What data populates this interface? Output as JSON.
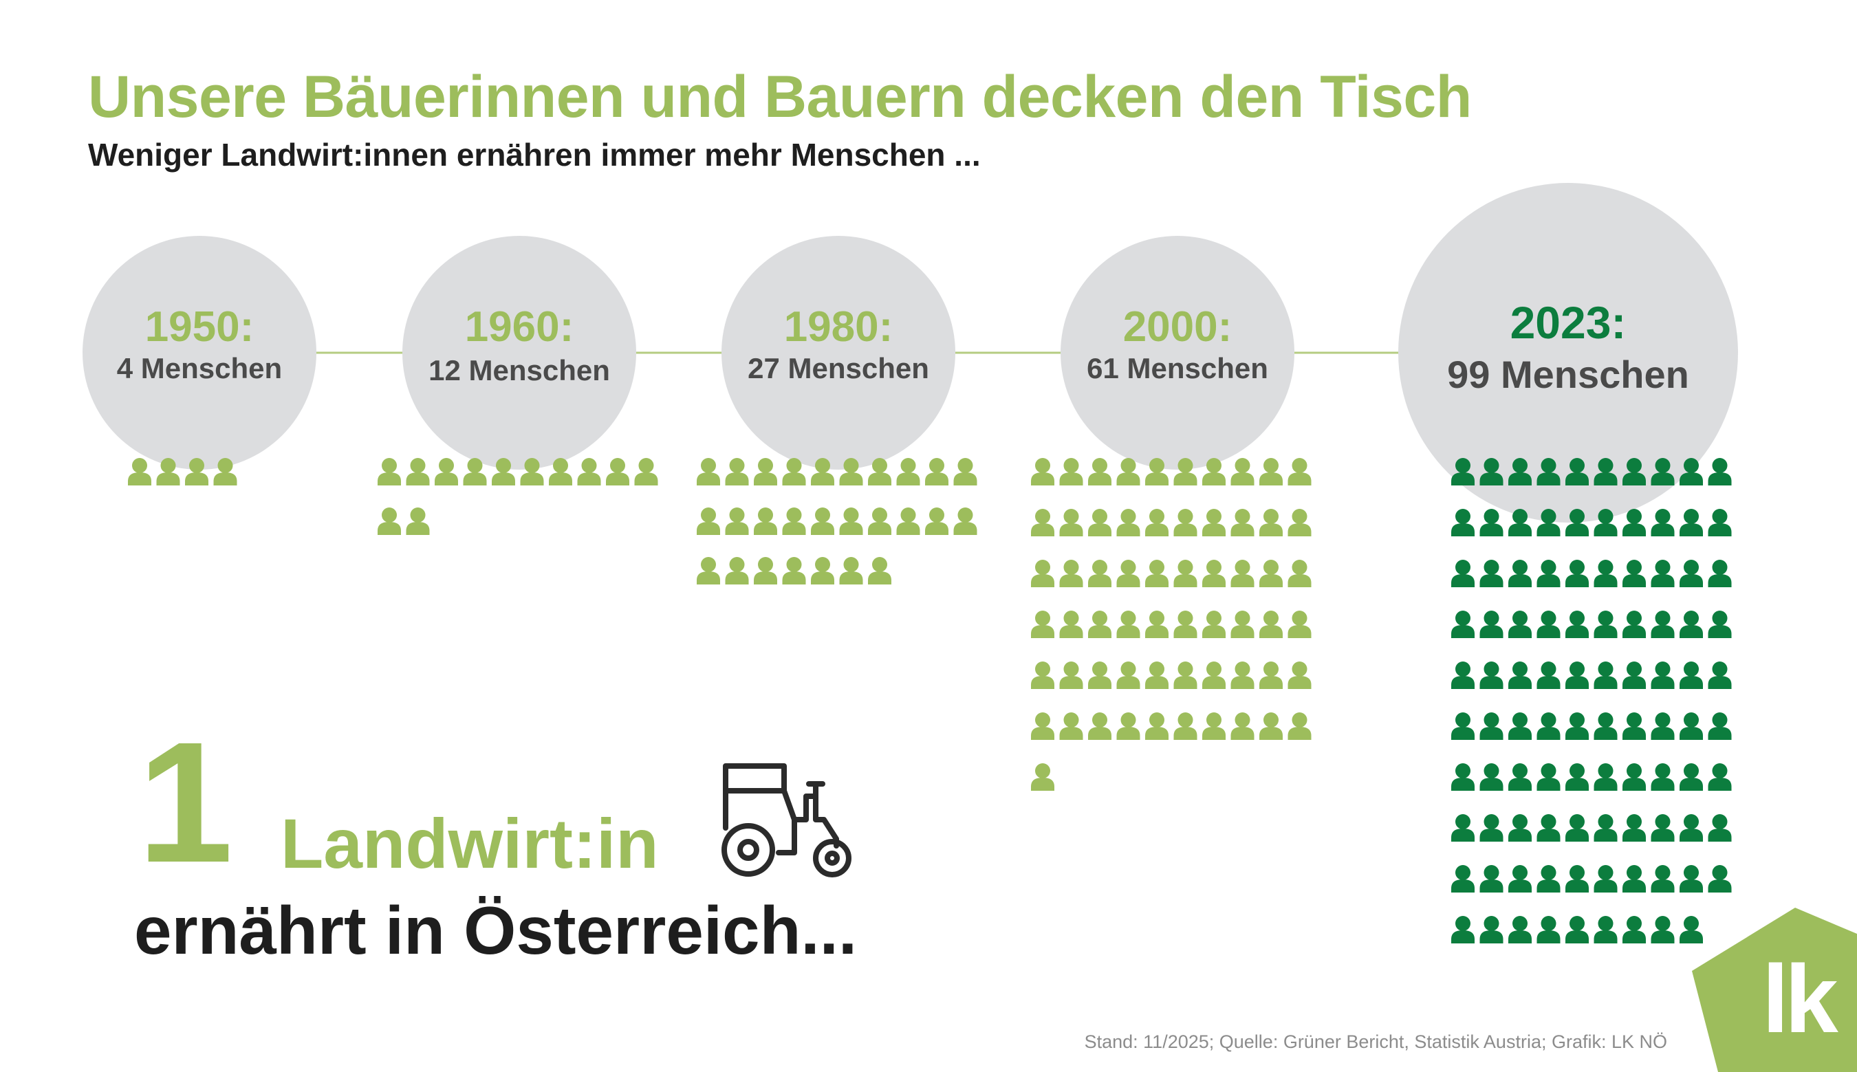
{
  "title": "Unsere Bäuerinnen und Bauern decken den Tisch",
  "subtitle": "Weniger Landwirt:innen ernähren immer mehr Menschen ...",
  "headline": {
    "number": "1",
    "farmer": "Landwirt:in",
    "feeds": "ernährt in Österreich..."
  },
  "icons": {
    "tractor": "tractor-icon",
    "person": "person-icon"
  },
  "source": "Stand: 11/2025; Quelle: Grüner Bericht, Statistik Austria; Grafik: LK NÖ",
  "logo_text": "lk",
  "colors": {
    "light_green": "#9dbd5c",
    "dark_green": "#0c7d3e",
    "circle_gray": "#dcdddf",
    "text_dark": "#4a4a4a",
    "line": "#b5cc82"
  },
  "chart_data": {
    "type": "pictogram",
    "title": "Weniger Landwirt:innen ernähren immer mehr Menschen ...",
    "unit": "Menschen",
    "categories": [
      "1950",
      "1960",
      "1980",
      "2000",
      "2023"
    ],
    "values": [
      4,
      12,
      27,
      61,
      99
    ],
    "year_labels": [
      "1950:",
      "1960:",
      "1980:",
      "2000:",
      "2023:"
    ],
    "value_labels": [
      "4 Menschen",
      "12 Menschen",
      "27 Menschen",
      "61 Menschen",
      "99 Menschen"
    ],
    "icons_per_row": 10,
    "highlight": "2023"
  }
}
